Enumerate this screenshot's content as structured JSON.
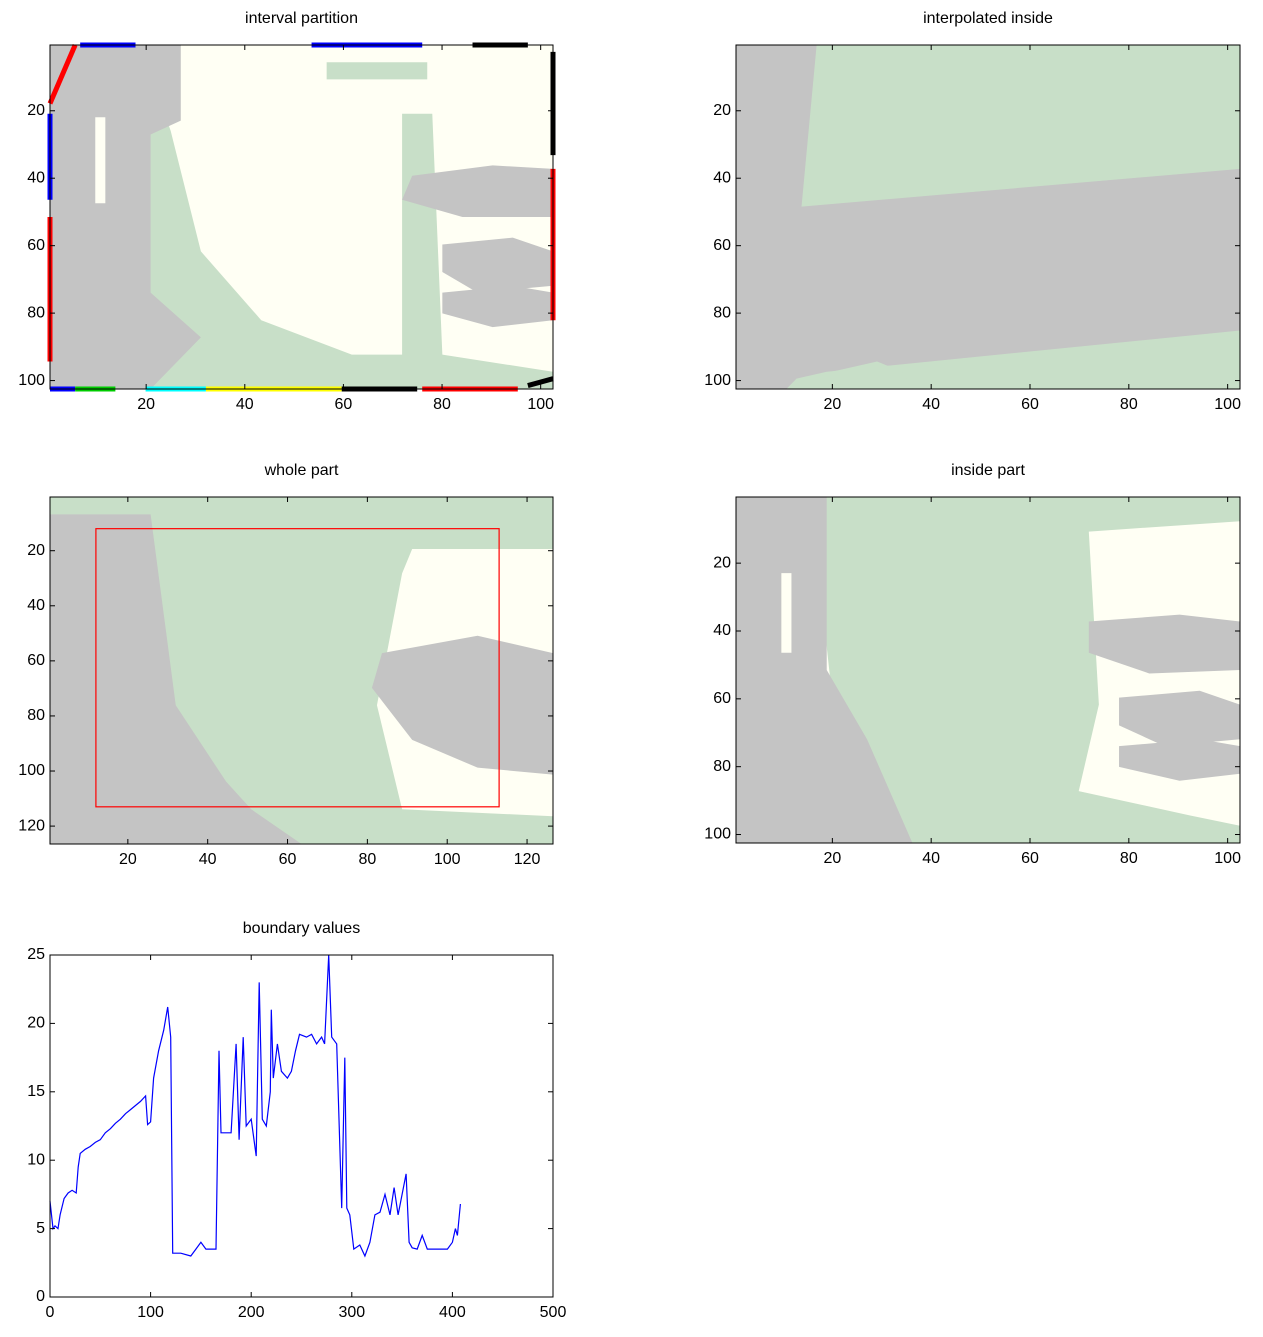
{
  "chart_data": [
    {
      "type": "image",
      "title": "interval partition",
      "xlim": [
        0.5,
        102.5
      ],
      "ylim": [
        0.5,
        102.5
      ],
      "xticks": [
        20,
        40,
        60,
        80,
        100
      ],
      "yticks": [
        20,
        40,
        60,
        80,
        100
      ],
      "y_reversed": true
    },
    {
      "type": "image",
      "title": "interpolated inside",
      "xlim": [
        0.5,
        102.5
      ],
      "ylim": [
        0.5,
        102.5
      ],
      "xticks": [
        20,
        40,
        60,
        80,
        100
      ],
      "yticks": [
        20,
        40,
        60,
        80,
        100
      ],
      "y_reversed": true
    },
    {
      "type": "image",
      "title": "whole part",
      "xlim": [
        0.5,
        126.5
      ],
      "ylim": [
        0.5,
        126.5
      ],
      "xticks": [
        20,
        40,
        60,
        80,
        100,
        120
      ],
      "yticks": [
        20,
        40,
        60,
        80,
        100,
        120
      ],
      "y_reversed": true,
      "region": {
        "x": [
          12,
          113
        ],
        "y": [
          12,
          113
        ],
        "color": "#ff0000"
      }
    },
    {
      "type": "image",
      "title": "inside part",
      "xlim": [
        0.5,
        102.5
      ],
      "ylim": [
        0.5,
        102.5
      ],
      "xticks": [
        20,
        40,
        60,
        80,
        100
      ],
      "yticks": [
        20,
        40,
        60,
        80,
        100
      ],
      "y_reversed": true
    },
    {
      "type": "line",
      "title": "boundary values",
      "xlim": [
        0,
        500
      ],
      "ylim": [
        0,
        25
      ],
      "xticks": [
        0,
        100,
        200,
        300,
        400,
        500
      ],
      "yticks": [
        0,
        5,
        10,
        15,
        20,
        25
      ],
      "color": "#0000ff",
      "x": [
        0,
        3,
        5,
        8,
        10,
        14,
        18,
        22,
        26,
        28,
        30,
        35,
        40,
        45,
        50,
        55,
        60,
        65,
        70,
        75,
        80,
        85,
        90,
        95,
        97,
        100,
        103,
        108,
        113,
        117,
        120,
        122,
        130,
        140,
        145,
        150,
        155,
        165,
        168,
        170,
        180,
        185,
        188,
        192,
        195,
        200,
        205,
        208,
        211,
        215,
        219,
        220,
        222,
        226,
        230,
        236,
        240,
        244,
        248,
        255,
        260,
        265,
        270,
        273,
        277,
        280,
        285,
        290,
        293,
        295,
        298,
        302,
        308,
        313,
        318,
        323,
        328,
        333,
        338,
        342,
        346,
        350,
        354,
        357,
        360,
        365,
        370,
        375,
        385,
        395,
        400,
        403,
        405,
        408
      ],
      "values": [
        7,
        5,
        5.2,
        5,
        6,
        7.2,
        7.6,
        7.8,
        7.6,
        9.5,
        10.5,
        10.8,
        11,
        11.3,
        11.5,
        12,
        12.3,
        12.7,
        13,
        13.4,
        13.7,
        14,
        14.3,
        14.7,
        12.6,
        12.8,
        16,
        18,
        19.5,
        21.2,
        19,
        3.2,
        3.2,
        3,
        3.5,
        4,
        3.5,
        3.5,
        18,
        12,
        12,
        18.5,
        11.5,
        19,
        12.5,
        13,
        10.3,
        23,
        13,
        12.5,
        15,
        21,
        16,
        18.5,
        16.5,
        16,
        16.5,
        18,
        19.2,
        19,
        19.2,
        18.5,
        19,
        18.5,
        25,
        19,
        18.5,
        6.5,
        17.5,
        6.5,
        6,
        3.5,
        3.8,
        3,
        4,
        6,
        6.2,
        7.5,
        6,
        8,
        6,
        7.5,
        9,
        4,
        3.6,
        3.5,
        4.5,
        3.5,
        3.5,
        3.5,
        4,
        5,
        4.5,
        6.8
      ]
    }
  ]
}
